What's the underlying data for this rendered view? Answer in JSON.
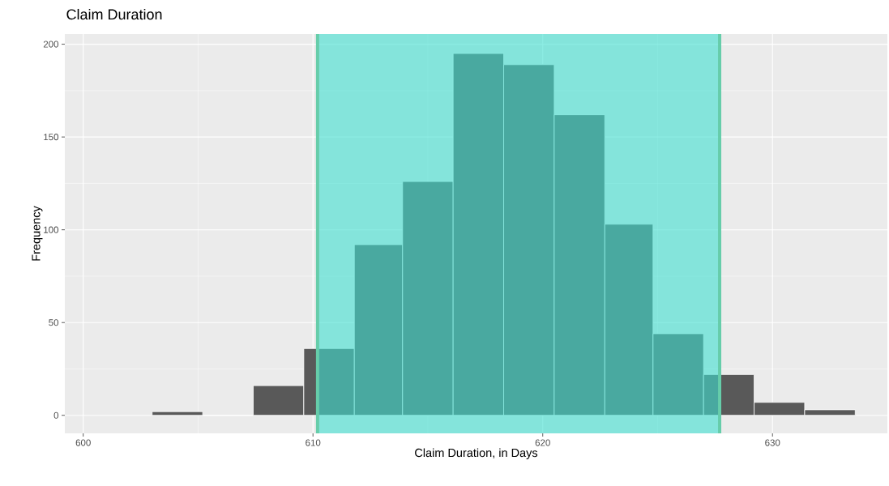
{
  "chart_data": {
    "type": "histogram",
    "title": "Claim Duration",
    "xlabel": "Claim Duration, in Days",
    "ylabel": "Frequency",
    "bins": [
      603.0,
      605.2,
      607.4,
      609.6,
      611.8,
      613.9,
      616.1,
      618.3,
      620.5,
      622.7,
      624.8,
      627.0,
      629.2,
      631.4,
      633.6
    ],
    "values": [
      2,
      0,
      16,
      36,
      92,
      126,
      195,
      189,
      162,
      103,
      44,
      22,
      7,
      3
    ],
    "color": "#595959",
    "xlim": [
      599.2,
      635.0
    ],
    "ylim": [
      -9.7,
      205.5
    ],
    "xticks": [
      600,
      610,
      620,
      630
    ],
    "yticks": [
      0,
      50,
      100,
      150,
      200
    ],
    "grid": true,
    "bands": [
      {
        "axis": "x",
        "from": 610.2,
        "to": 627.7,
        "color": "#40e0d0"
      }
    ],
    "ref_lines": [
      {
        "axis": "x",
        "value": 610.2,
        "color": "#66cdaa"
      },
      {
        "axis": "x",
        "value": 627.7,
        "color": "#66cdaa"
      }
    ]
  }
}
